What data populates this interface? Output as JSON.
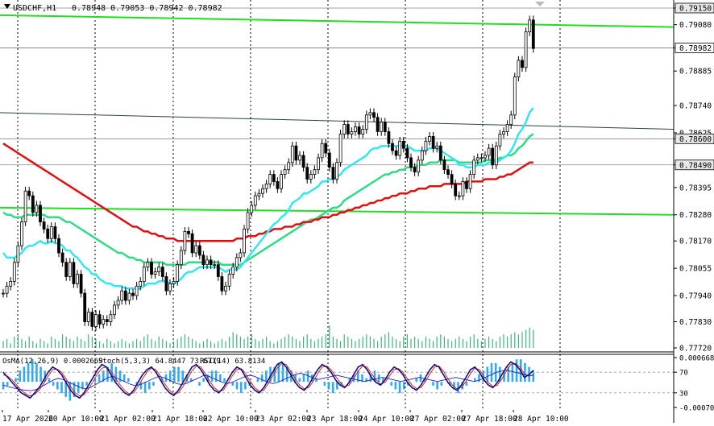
{
  "header": {
    "symbol_label": "USDCHF,H1",
    "ohlc_label": "0.78948 0.79053 0.78942 0.78982"
  },
  "osma_label": "OsMA(12,26,9) 0.0002669",
  "stoch_label": "Stoch(5,3,3) 64.8447 73.6719",
  "rsi_label": "RSI(14) 63.8134",
  "colors": {
    "background": "#ffffff",
    "bull_candle": "#ffffff",
    "bear_candle": "#000000",
    "grid": "#000000",
    "ema_fast": "#33e6f0",
    "ema_mid": "#2ddc84",
    "ema_slow": "#e01010",
    "trend": "#22dd22",
    "volume": "#3ab87a",
    "osma_hist": "#33aaf0",
    "stoch_main": "#101080",
    "stoch_signal": "#e01010",
    "rsi": "#2222cc",
    "current_price_badge": "#ffffff",
    "highlight_badge": "#e8e8e8"
  },
  "chart_data": [
    {
      "type": "candlestick",
      "symbol": "USDCHF",
      "timeframe": "H1",
      "x_labels": [
        "17 Apr 2026",
        "20 Apr 10:00",
        "21 Apr 02:00",
        "21 Apr 18:00",
        "22 Apr 10:00",
        "23 Apr 02:00",
        "23 Apr 18:00",
        "24 Apr 10:00",
        "27 Apr 02:00",
        "27 Apr 18:00",
        "28 Apr 10:00"
      ],
      "y_ticks": [
        "0.79150",
        "0.79080",
        "0.78982",
        "0.78885",
        "0.78740",
        "0.78625",
        "0.78600",
        "0.78490",
        "0.78395",
        "0.78280",
        "0.78170",
        "0.78055",
        "0.77940",
        "0.77830",
        "0.77720"
      ],
      "ylim": [
        0.7772,
        0.7915
      ],
      "current_price": 0.78982,
      "highlight_levels": [
        0.7915,
        0.786,
        0.7849
      ],
      "close_values": [
        0.7795,
        0.7798,
        0.78,
        0.7808,
        0.7815,
        0.7825,
        0.7838,
        0.7836,
        0.7829,
        0.7832,
        0.7825,
        0.7822,
        0.7818,
        0.7823,
        0.7818,
        0.7812,
        0.7808,
        0.7802,
        0.7808,
        0.7799,
        0.7803,
        0.7795,
        0.7783,
        0.7787,
        0.7781,
        0.7786,
        0.7782,
        0.7784,
        0.7783,
        0.7786,
        0.779,
        0.7792,
        0.7796,
        0.7792,
        0.7795,
        0.7794,
        0.7798,
        0.78,
        0.7806,
        0.7808,
        0.7803,
        0.7804,
        0.7806,
        0.7802,
        0.7796,
        0.7799,
        0.78,
        0.7807,
        0.7813,
        0.7821,
        0.782,
        0.7812,
        0.7815,
        0.7811,
        0.7807,
        0.7809,
        0.7807,
        0.7807,
        0.7802,
        0.7796,
        0.7798,
        0.7803,
        0.7806,
        0.781,
        0.7812,
        0.7822,
        0.7829,
        0.7832,
        0.7836,
        0.7837,
        0.7839,
        0.7841,
        0.7845,
        0.7842,
        0.7839,
        0.7845,
        0.7847,
        0.785,
        0.7857,
        0.7851,
        0.7853,
        0.7848,
        0.7843,
        0.7845,
        0.7847,
        0.7852,
        0.7858,
        0.7854,
        0.7848,
        0.7843,
        0.785,
        0.7862,
        0.7866,
        0.7862,
        0.7863,
        0.7865,
        0.7862,
        0.7864,
        0.787,
        0.7871,
        0.7869,
        0.7863,
        0.7867,
        0.7863,
        0.7858,
        0.7855,
        0.7853,
        0.7859,
        0.7856,
        0.7852,
        0.7848,
        0.7846,
        0.7851,
        0.7855,
        0.7859,
        0.7861,
        0.7856,
        0.7857,
        0.7851,
        0.7847,
        0.7845,
        0.7841,
        0.7836,
        0.7836,
        0.7842,
        0.7839,
        0.7845,
        0.7851,
        0.7852,
        0.7852,
        0.7853,
        0.7856,
        0.7849,
        0.7857,
        0.7862,
        0.7863,
        0.7866,
        0.787,
        0.7886,
        0.7893,
        0.789,
        0.7905,
        0.791,
        0.7898
      ],
      "ema_fast_values": [
        0.7812,
        0.781,
        0.781,
        0.781,
        0.7811,
        0.7812,
        0.7814,
        0.7815,
        0.7815,
        0.7816,
        0.7817,
        0.7816,
        0.7816,
        0.7817,
        0.7816,
        0.7816,
        0.7815,
        0.7813,
        0.7813,
        0.7811,
        0.781,
        0.7808,
        0.7806,
        0.7805,
        0.7803,
        0.7803,
        0.7801,
        0.78,
        0.7799,
        0.7799,
        0.7798,
        0.7798,
        0.7798,
        0.7797,
        0.7797,
        0.7797,
        0.7797,
        0.7797,
        0.7798,
        0.7799,
        0.7799,
        0.7799,
        0.78,
        0.78,
        0.78,
        0.7799,
        0.7799,
        0.78,
        0.7801,
        0.7803,
        0.7804,
        0.7804,
        0.7805,
        0.7806,
        0.7806,
        0.7806,
        0.7806,
        0.7806,
        0.7806,
        0.7805,
        0.7804,
        0.7805,
        0.7805,
        0.7805,
        0.7806,
        0.7808,
        0.781,
        0.7812,
        0.7814,
        0.7816,
        0.7818,
        0.782,
        0.7822,
        0.7824,
        0.7825,
        0.7827,
        0.7828,
        0.783,
        0.7833,
        0.7834,
        0.7835,
        0.7837,
        0.7837,
        0.7838,
        0.7839,
        0.784,
        0.7842,
        0.7842,
        0.7843,
        0.7843,
        0.7844,
        0.7845,
        0.7847,
        0.7848,
        0.7849,
        0.785,
        0.7851,
        0.7852,
        0.7853,
        0.7855,
        0.7856,
        0.7856,
        0.7857,
        0.7857,
        0.7857,
        0.7857,
        0.7857,
        0.7857,
        0.7857,
        0.7857,
        0.7856,
        0.7855,
        0.7855,
        0.7855,
        0.7855,
        0.7856,
        0.7856,
        0.7856,
        0.7855,
        0.7854,
        0.7853,
        0.7852,
        0.7851,
        0.7849,
        0.7849,
        0.7848,
        0.7848,
        0.7848,
        0.7849,
        0.7849,
        0.7849,
        0.785,
        0.785,
        0.785,
        0.7851,
        0.7852,
        0.7853,
        0.7855,
        0.7858,
        0.7862,
        0.7864,
        0.7867,
        0.7871,
        0.7873
      ],
      "ema_mid_values": [
        0.7829,
        0.7828,
        0.7828,
        0.7827,
        0.7827,
        0.7827,
        0.7828,
        0.7828,
        0.7828,
        0.7828,
        0.7828,
        0.7828,
        0.7827,
        0.7827,
        0.7827,
        0.7827,
        0.7826,
        0.7825,
        0.7825,
        0.7824,
        0.7823,
        0.7822,
        0.7821,
        0.782,
        0.7819,
        0.7818,
        0.7817,
        0.7816,
        0.7815,
        0.7814,
        0.7813,
        0.7812,
        0.7812,
        0.7811,
        0.781,
        0.781,
        0.7809,
        0.7809,
        0.7808,
        0.7808,
        0.7808,
        0.7808,
        0.7808,
        0.7808,
        0.7807,
        0.7807,
        0.7807,
        0.7807,
        0.7807,
        0.7807,
        0.7808,
        0.7808,
        0.7808,
        0.7808,
        0.7808,
        0.7808,
        0.7808,
        0.7808,
        0.7808,
        0.7807,
        0.7807,
        0.7807,
        0.7807,
        0.7807,
        0.7807,
        0.7808,
        0.7809,
        0.781,
        0.7811,
        0.7812,
        0.7813,
        0.7814,
        0.7815,
        0.7816,
        0.7817,
        0.7818,
        0.7819,
        0.782,
        0.7821,
        0.7822,
        0.7823,
        0.7824,
        0.7825,
        0.7826,
        0.7826,
        0.7827,
        0.7828,
        0.7829,
        0.783,
        0.7831,
        0.7831,
        0.7832,
        0.7834,
        0.7835,
        0.7836,
        0.7837,
        0.7838,
        0.7839,
        0.784,
        0.7841,
        0.7842,
        0.7843,
        0.7844,
        0.7845,
        0.7845,
        0.7846,
        0.7846,
        0.7847,
        0.7847,
        0.7848,
        0.7848,
        0.7848,
        0.7849,
        0.7849,
        0.7849,
        0.785,
        0.785,
        0.785,
        0.7851,
        0.7851,
        0.7851,
        0.7851,
        0.7851,
        0.785,
        0.785,
        0.785,
        0.785,
        0.785,
        0.785,
        0.785,
        0.7851,
        0.7851,
        0.7851,
        0.7851,
        0.7852,
        0.7852,
        0.7853,
        0.7853,
        0.7854,
        0.7856,
        0.7857,
        0.7859,
        0.7861,
        0.7862
      ],
      "ema_slow_values": [
        0.7858,
        0.7857,
        0.7856,
        0.7855,
        0.7854,
        0.7853,
        0.7852,
        0.7851,
        0.785,
        0.7849,
        0.7848,
        0.7847,
        0.7846,
        0.7845,
        0.7844,
        0.7843,
        0.7842,
        0.7841,
        0.784,
        0.7839,
        0.7838,
        0.7837,
        0.7836,
        0.7835,
        0.7834,
        0.7833,
        0.7832,
        0.7831,
        0.783,
        0.7829,
        0.7828,
        0.7827,
        0.7826,
        0.7825,
        0.7824,
        0.7823,
        0.7823,
        0.7822,
        0.7821,
        0.7821,
        0.782,
        0.782,
        0.7819,
        0.7819,
        0.7818,
        0.7818,
        0.7818,
        0.7817,
        0.7817,
        0.7817,
        0.7817,
        0.7817,
        0.7817,
        0.7817,
        0.7817,
        0.7817,
        0.7817,
        0.7817,
        0.7817,
        0.7817,
        0.7817,
        0.7817,
        0.7817,
        0.7818,
        0.7818,
        0.7818,
        0.7819,
        0.7819,
        0.7819,
        0.782,
        0.782,
        0.7821,
        0.7821,
        0.7822,
        0.7822,
        0.7822,
        0.7823,
        0.7823,
        0.7823,
        0.7824,
        0.7824,
        0.7825,
        0.7825,
        0.7825,
        0.7826,
        0.7826,
        0.7827,
        0.7827,
        0.7827,
        0.7828,
        0.7828,
        0.7829,
        0.7829,
        0.783,
        0.783,
        0.7831,
        0.7831,
        0.7832,
        0.7832,
        0.7833,
        0.7833,
        0.7834,
        0.7834,
        0.7835,
        0.7835,
        0.7836,
        0.7836,
        0.7837,
        0.7837,
        0.7837,
        0.7838,
        0.7838,
        0.7839,
        0.7839,
        0.7839,
        0.784,
        0.784,
        0.784,
        0.784,
        0.7841,
        0.7841,
        0.7841,
        0.7841,
        0.7841,
        0.7841,
        0.7842,
        0.7842,
        0.7842,
        0.7842,
        0.7842,
        0.7843,
        0.7843,
        0.7843,
        0.7843,
        0.7844,
        0.7844,
        0.7845,
        0.7845,
        0.7846,
        0.7847,
        0.7848,
        0.7849,
        0.785,
        0.785
      ],
      "trend_lines": [
        {
          "name": "upper",
          "start": 0.7912,
          "end": 0.7907
        },
        {
          "name": "middle",
          "start": 0.7871,
          "end": 0.7864
        },
        {
          "name": "lower",
          "start": 0.7831,
          "end": 0.7828
        }
      ],
      "volume_values": [
        0.3,
        0.4,
        0.2,
        0.5,
        0.6,
        0.4,
        0.3,
        0.5,
        0.3,
        0.2,
        0.4,
        0.3,
        0.2,
        0.5,
        0.4,
        0.3,
        0.6,
        0.5,
        0.4,
        0.3,
        0.5,
        0.4,
        0.3,
        0.6,
        0.5,
        0.4,
        0.3,
        0.2,
        0.4,
        0.3,
        0.2,
        0.3,
        0.4,
        0.3,
        0.2,
        0.3,
        0.4,
        0.3,
        0.5,
        0.6,
        0.4,
        0.3,
        0.5,
        0.4,
        0.3,
        0.2,
        0.3,
        0.4,
        0.5,
        0.6,
        0.5,
        0.4,
        0.3,
        0.2,
        0.3,
        0.4,
        0.3,
        0.2,
        0.3,
        0.4,
        0.3,
        0.5,
        0.7,
        0.6,
        0.5,
        0.4,
        0.5,
        0.6,
        0.4,
        0.3,
        0.4,
        0.5,
        0.3,
        0.2,
        0.3,
        0.4,
        0.5,
        0.6,
        0.5,
        0.4,
        0.3,
        0.5,
        0.6,
        0.4,
        0.3,
        0.4,
        0.5,
        0.6,
        1.0,
        0.5,
        0.4,
        0.3,
        0.6,
        0.5,
        0.4,
        0.3,
        0.4,
        0.5,
        0.6,
        0.5,
        0.4,
        0.3,
        0.5,
        0.6,
        0.7,
        0.5,
        0.4,
        0.3,
        0.5,
        0.6,
        0.4,
        0.5,
        0.4,
        0.3,
        0.5,
        0.4,
        0.3,
        0.5,
        0.6,
        0.5,
        0.4,
        0.3,
        0.4,
        0.5,
        0.4,
        0.3,
        0.5,
        0.6,
        0.4,
        0.3,
        0.4,
        0.5,
        0.4,
        0.3,
        0.5,
        0.6,
        0.5,
        0.6,
        0.7,
        0.6,
        0.7,
        0.8,
        0.9,
        0.8
      ],
      "indicator_y_ticks": [
        "0.0006686",
        "70",
        "30",
        "-0.000703"
      ],
      "indicator_levels": [
        70,
        30
      ],
      "osma_values": [
        -0.0002,
        -0.0001,
        0.0,
        0.0001,
        0.0003,
        0.0004,
        0.0005,
        0.0006,
        0.0005,
        0.0004,
        0.0003,
        0.0001,
        -0.0001,
        -0.0002,
        -0.0003,
        -0.0004,
        -0.0005,
        -0.0004,
        -0.0003,
        -0.0002,
        -0.0001,
        0.0,
        0.0001,
        0.0002,
        0.0003,
        0.0004,
        0.0005,
        0.0004,
        0.0003,
        0.0002,
        0.0001,
        0.0,
        -0.0001,
        -0.0002,
        -0.0003,
        -0.0002,
        -0.0001,
        0.0,
        0.0001,
        0.0002,
        0.0003,
        0.0004,
        0.0004,
        0.0003,
        0.0002,
        0.0001,
        0.0,
        -0.0001,
        0.0001,
        0.0002,
        0.0003,
        0.0003,
        0.0002,
        0.0001,
        0.0,
        -0.0001,
        -0.0002,
        -0.0003,
        -0.0002,
        -0.0001,
        0.0,
        0.0001,
        0.0002,
        0.0003,
        0.0004,
        0.0004,
        0.0005,
        0.0005,
        0.0004,
        0.0003,
        0.0002,
        0.0001,
        0.0002,
        0.0003,
        0.0002,
        0.0001,
        0.0,
        -0.0001,
        -0.0002,
        -0.0003,
        -0.0002,
        -0.0001,
        0.0,
        0.0001,
        0.0002,
        0.0003,
        0.0002,
        0.0001,
        0.0002,
        0.0003,
        0.0002,
        0.0001,
        0.0,
        -0.0001,
        -0.0002,
        -0.0003,
        -0.0002,
        -0.0001,
        0.0,
        0.0001,
        0.0002,
        0.0001,
        0.0,
        -0.0001,
        -0.0002,
        -0.0001,
        0.0,
        -0.0001,
        -0.0002,
        -0.0003,
        -0.0002,
        -0.0001,
        0.0,
        0.0001,
        0.0002,
        0.0003,
        0.0004,
        0.0005,
        0.0005,
        0.0004,
        0.0003,
        0.0004,
        0.0005,
        0.0006,
        0.0006,
        0.0005,
        0.0004,
        0.0003
      ],
      "stoch_main_values": [
        70,
        60,
        50,
        40,
        30,
        25,
        20,
        30,
        40,
        55,
        70,
        80,
        75,
        65,
        50,
        35,
        25,
        20,
        30,
        45,
        60,
        75,
        85,
        80,
        65,
        50,
        40,
        30,
        25,
        35,
        50,
        65,
        75,
        80,
        70,
        55,
        40,
        30,
        25,
        35,
        50,
        65,
        80,
        85,
        75,
        60,
        45,
        35,
        30,
        40,
        55,
        70,
        80,
        75,
        60,
        45,
        35,
        30,
        40,
        55,
        70,
        85,
        90,
        80,
        65,
        50,
        40,
        35,
        45,
        60,
        75,
        85,
        80,
        70,
        55,
        45,
        40,
        50,
        65,
        80,
        85,
        75,
        60,
        50,
        45,
        55,
        70,
        80,
        75,
        65,
        50,
        40,
        35,
        45,
        60,
        75,
        85,
        80,
        65,
        50,
        40,
        35,
        45,
        60,
        75,
        80,
        70,
        55,
        45,
        40,
        50,
        65,
        80,
        90,
        85,
        75,
        60,
        65,
        73.6719
      ],
      "stoch_signal_values": [
        65,
        62,
        55,
        45,
        35,
        28,
        24,
        27,
        35,
        48,
        62,
        75,
        76,
        70,
        57,
        42,
        30,
        24,
        26,
        38,
        52,
        67,
        78,
        80,
        72,
        58,
        46,
        35,
        28,
        30,
        42,
        57,
        70,
        78,
        75,
        62,
        47,
        35,
        28,
        30,
        42,
        57,
        72,
        82,
        80,
        67,
        52,
        40,
        33,
        35,
        48,
        63,
        75,
        77,
        67,
        52,
        40,
        33,
        35,
        48,
        63,
        78,
        87,
        85,
        72,
        57,
        45,
        38,
        40,
        52,
        67,
        80,
        82,
        75,
        62,
        50,
        42,
        45,
        57,
        72,
        82,
        80,
        67,
        55,
        47,
        50,
        63,
        75,
        77,
        70,
        57,
        45,
        38,
        40,
        52,
        67,
        80,
        82,
        72,
        57,
        45,
        38,
        40,
        52,
        67,
        78,
        75,
        62,
        50,
        42,
        45,
        57,
        72,
        85,
        87,
        80,
        67,
        62,
        64.8447
      ],
      "rsi_values": [
        45,
        42,
        40,
        38,
        36,
        35,
        34,
        36,
        40,
        45,
        50,
        55,
        58,
        56,
        52,
        48,
        44,
        40,
        38,
        40,
        45,
        50,
        55,
        60,
        62,
        58,
        54,
        50,
        46,
        44,
        46,
        50,
        54,
        58,
        62,
        60,
        56,
        52,
        48,
        46,
        48,
        52,
        56,
        60,
        64,
        62,
        58,
        54,
        50,
        48,
        50,
        54,
        58,
        62,
        64,
        62,
        58,
        54,
        50,
        48,
        50,
        54,
        58,
        62,
        66,
        68,
        66,
        62,
        58,
        56,
        58,
        60,
        62,
        64,
        62,
        60,
        58,
        56,
        54,
        52,
        54,
        56,
        58,
        60,
        58,
        56,
        54,
        52,
        54,
        56,
        58,
        60,
        58,
        56,
        54,
        52,
        54,
        56,
        58,
        60,
        58,
        56,
        54,
        52,
        54,
        58,
        62,
        66,
        70,
        72,
        74,
        72,
        70,
        68,
        66,
        64,
        63.8134
      ]
    }
  ]
}
